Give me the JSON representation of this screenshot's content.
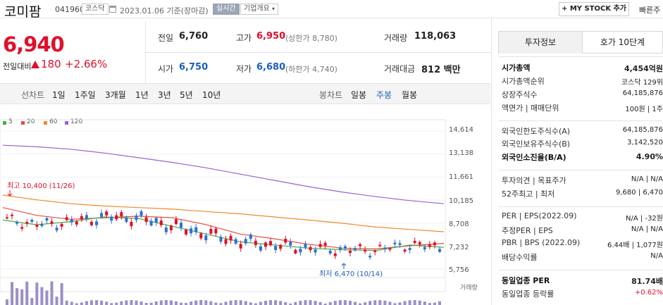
{
  "header": {
    "title": "코미팜",
    "code": "041960",
    "market": "코스닥",
    "date": "2023.01.06  기준(장마감)",
    "live_tag": "실시간",
    "overview": "기업개요",
    "mystock": "+ MY STOCK 추가",
    "quick": "빠른주"
  },
  "price": {
    "current": "6,940",
    "prev_label": "전일대비",
    "change": "180",
    "change_pct": "+2.66%"
  },
  "summary": {
    "prev_label": "전일",
    "prev": "6,760",
    "high_label": "고가",
    "high": "6,950",
    "upper": "(상한가 8,780)",
    "volume_label": "거래량",
    "volume": "118,063",
    "open_label": "시가",
    "open": "6,750",
    "low_label": "저가",
    "low": "6,680",
    "lower": "(하한가 4,740)",
    "amount_label": "거래대금",
    "amount": "812 백만"
  },
  "periods": {
    "line_label": "선차트",
    "line": [
      "1일",
      "1주일",
      "3개월",
      "1년",
      "3년",
      "5년",
      "10년"
    ],
    "candle_label": "봉차트",
    "candle": [
      "일봉",
      "주봉",
      "월봉"
    ],
    "candle_selected": "주봉"
  },
  "chart_data": {
    "type": "line",
    "ylim": [
      5756,
      14614
    ],
    "yticks": [
      "14,614",
      "13,138",
      "11,661",
      "10,185",
      "8,708",
      "7,232",
      "5,756"
    ],
    "legend": [
      {
        "name": "5",
        "color": "#3fae3f"
      },
      {
        "name": "20",
        "color": "#e84b3c"
      },
      {
        "name": "60",
        "color": "#f0892c"
      },
      {
        "name": "120",
        "color": "#9a63c9"
      }
    ],
    "annotations": {
      "high": "최고 10,400 (11/26)",
      "low": "최저 6,470 (10/14)"
    },
    "volume_label": "거래량",
    "series": [
      {
        "name": "120",
        "color": "#9a63c9",
        "values": [
          13700,
          13600,
          13450,
          13200,
          12900,
          12600,
          12250,
          11850,
          11450,
          11050,
          10700,
          10400,
          10150,
          9950
        ]
      },
      {
        "name": "60",
        "color": "#f0892c",
        "values": [
          10500,
          10200,
          9950,
          9800,
          9700,
          9600,
          9450,
          9300,
          9100,
          8900,
          8700,
          8450,
          8300,
          8150
        ]
      },
      {
        "name": "20",
        "color": "#e84b3c",
        "values": [
          9700,
          9200,
          8950,
          9050,
          9150,
          9050,
          8600,
          8000,
          7700,
          7350,
          7100,
          7050,
          7250,
          7400
        ]
      },
      {
        "name": "5",
        "color": "#3fae3f",
        "values": [
          8900,
          8600,
          8800,
          9100,
          9000,
          8500,
          8000,
          7500,
          7300,
          7100,
          7000,
          6950,
          7300,
          7150
        ]
      }
    ]
  },
  "info": {
    "tab_invest": "투자정보",
    "tab_quote": "호가 10단계",
    "rows": [
      {
        "label": "시가총액",
        "value": "4,454억원",
        "bold": true
      },
      {
        "label": "시가총액순위",
        "value": "코스닥 129위"
      },
      {
        "label": "상장주식수",
        "value": "64,185,876"
      },
      {
        "label": "액면가 | 매매단위",
        "value": "100원 | 1주"
      },
      {
        "label": "외국인한도주식수(A)",
        "value": "64,185,876"
      },
      {
        "label": "외국인보유주식수(B)",
        "value": "3,142,520"
      },
      {
        "label": "외국인소진율(B/A)",
        "value": "4.90%",
        "bold": true
      },
      {
        "label": "투자의견 | 목표주가",
        "value": "N/A | N/A"
      },
      {
        "label": "52주최고 | 최저",
        "value": "9,680 | 6,470"
      },
      {
        "label": "PER | EPS(2022.09)",
        "value": "N/A | -32원"
      },
      {
        "label": "추정PER | EPS",
        "value": "N/A | N/A"
      },
      {
        "label": "PBR | BPS (2022.09)",
        "value": "6.44배 | 1,077원"
      },
      {
        "label": "배당수익률",
        "value": "N/A"
      },
      {
        "label": "동일업종 PER",
        "value": "81.74배",
        "bold": true
      },
      {
        "label": "동일업종 등락률",
        "value": "+0.62%",
        "red": true
      }
    ]
  }
}
